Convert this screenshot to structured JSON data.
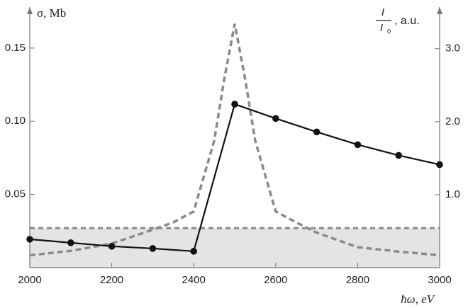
{
  "chart_data": {
    "type": "line",
    "y_label": "σ, Mb",
    "x_label": "ħω, eV",
    "y2_label": {
      "numerator": "I",
      "denominator": "I",
      "denominator_sub": "0",
      "suffix": ", a.u."
    },
    "xlim": [
      2000,
      3000
    ],
    "xticks": [
      2000,
      2200,
      2400,
      2600,
      2800,
      3000
    ],
    "ylim": [
      0,
      0.178
    ],
    "yticks": [
      {
        "value": 0.05,
        "label": "0.05"
      },
      {
        "value": 0.1,
        "label": "0.10"
      },
      {
        "value": 0.15,
        "label": "0.15"
      }
    ],
    "y2lim": [
      0,
      3.57
    ],
    "y2ticks": [
      {
        "value": 1,
        "label": "1.0"
      },
      {
        "value": 2,
        "label": "2.0"
      },
      {
        "value": 3,
        "label": "3.0"
      }
    ],
    "shaded_level": 0.027,
    "series": [
      {
        "color": "#111111",
        "markers": true,
        "dashed": false,
        "x": [
          2000,
          2100,
          2200,
          2300,
          2400,
          2500,
          2600,
          2700,
          2800,
          2900,
          3000
        ],
        "values": [
          0.0194,
          0.017,
          0.0146,
          0.0131,
          0.0112,
          0.1117,
          0.1019,
          0.0927,
          0.084,
          0.0767,
          0.0704
        ]
      },
      {
        "color": "#8a8a8a",
        "markers": false,
        "dashed": true,
        "axis": "y2",
        "x": [
          2000,
          2100,
          2200,
          2300,
          2350,
          2400,
          2450,
          2475,
          2500,
          2525,
          2550,
          2600,
          2650,
          2700,
          2800,
          2900,
          3000
        ],
        "values": [
          0.17,
          0.23,
          0.33,
          0.52,
          0.62,
          0.77,
          1.74,
          2.6,
          3.34,
          2.6,
          1.74,
          0.77,
          0.62,
          0.48,
          0.28,
          0.22,
          0.17
        ]
      }
    ]
  }
}
